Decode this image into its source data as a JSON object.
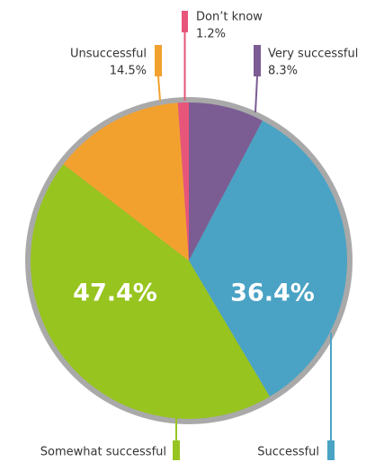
{
  "chart_data": {
    "type": "pie",
    "categories": [
      "Very successful",
      "Successful",
      "Somewhat successful",
      "Unsuccessful",
      "Don’t know"
    ],
    "values": [
      8.3,
      36.4,
      47.4,
      14.5,
      1.2
    ],
    "value_labels": [
      "8.3%",
      "36.4%",
      "47.4%",
      "14.5%",
      "1.2%"
    ],
    "colors": [
      "#7b5c93",
      "#4aa3c4",
      "#97c41f",
      "#f2a12f",
      "#e8557a"
    ]
  }
}
